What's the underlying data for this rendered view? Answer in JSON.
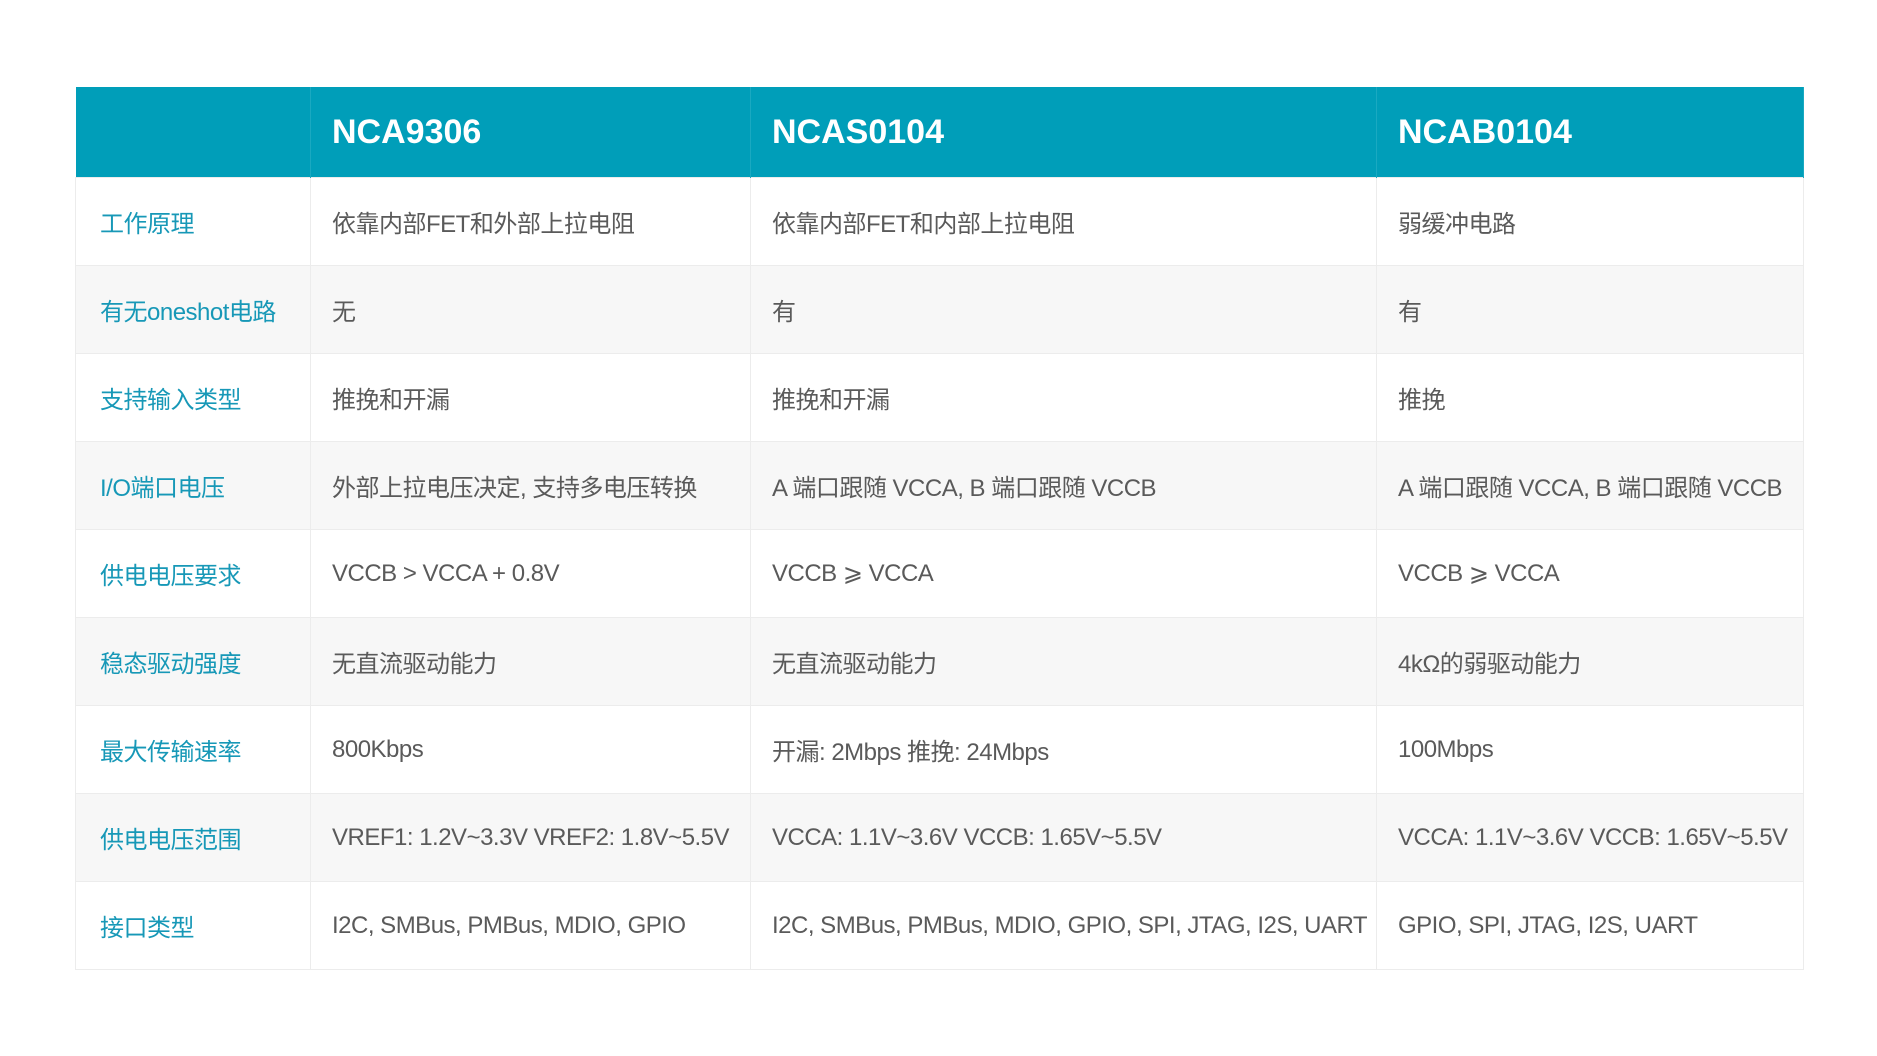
{
  "header": [
    "",
    "NCA9306",
    "NCAS0104",
    "NCAB0104"
  ],
  "rows": [
    {
      "label": "工作原理",
      "cells": [
        "依靠内部FET和外部上拉电阻",
        "依靠内部FET和内部上拉电阻",
        "弱缓冲电路"
      ]
    },
    {
      "label": "有无oneshot电路",
      "cells": [
        "无",
        "有",
        "有"
      ]
    },
    {
      "label": "支持输入类型",
      "cells": [
        "推挽和开漏",
        "推挽和开漏",
        "推挽"
      ]
    },
    {
      "label": "I/O端口电压",
      "cells": [
        "外部上拉电压决定, 支持多电压转换",
        "A 端口跟随 VCCA, B 端口跟随 VCCB",
        "A 端口跟随 VCCA, B 端口跟随 VCCB"
      ]
    },
    {
      "label": "供电电压要求",
      "cells": [
        "VCCB > VCCA + 0.8V",
        "VCCB ⩾ VCCA",
        "VCCB ⩾ VCCA"
      ]
    },
    {
      "label": "稳态驱动强度",
      "cells": [
        "无直流驱动能力",
        "无直流驱动能力",
        "4kΩ的弱驱动能力"
      ]
    },
    {
      "label": "最大传输速率",
      "cells": [
        "800Kbps",
        "开漏: 2Mbps   推挽: 24Mbps",
        "100Mbps"
      ]
    },
    {
      "label": "供电电压范围",
      "cells": [
        "VREF1: 1.2V~3.3V   VREF2: 1.8V~5.5V",
        "VCCA: 1.1V~3.6V   VCCB: 1.65V~5.5V",
        "VCCA: 1.1V~3.6V   VCCB: 1.65V~5.5V"
      ]
    },
    {
      "label": "接口类型",
      "cells": [
        "I2C, SMBus, PMBus, MDIO, GPIO",
        "I2C, SMBus, PMBus, MDIO, GPIO, SPI, JTAG, I2S, UART",
        "GPIO, SPI, JTAG, I2S, UART"
      ]
    }
  ],
  "colors": {
    "header_bg": "#009eb9",
    "label_text": "#1798b7",
    "body_text": "#5a5a5a",
    "alt_row": "#f7f7f7"
  }
}
